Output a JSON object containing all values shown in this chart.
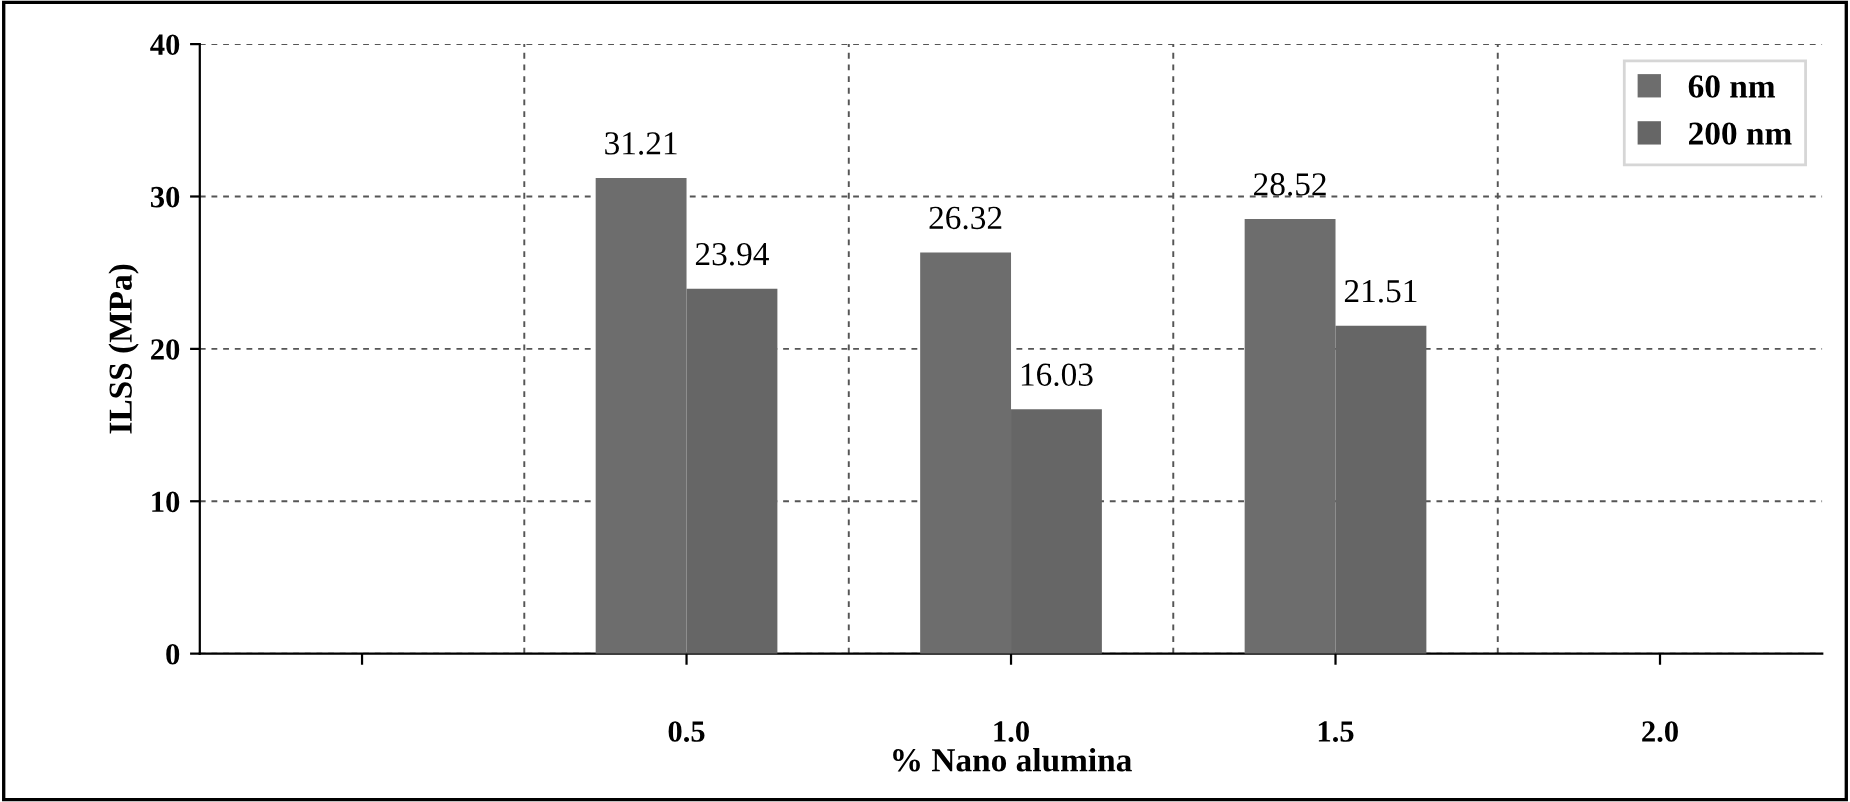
{
  "chart_data": {
    "type": "bar",
    "xlabel": "% Nano alumina",
    "ylabel": "ILSS (MPa)",
    "categories": [
      null,
      "0.5",
      "1.0",
      "1.5",
      "2.0"
    ],
    "series": [
      {
        "name": "60 nm",
        "color": "#6d6d6d",
        "values": [
          null,
          31.21,
          26.32,
          28.52,
          null
        ]
      },
      {
        "name": "200 nm",
        "color": "#666666",
        "values": [
          null,
          23.94,
          16.03,
          21.51,
          null
        ]
      }
    ],
    "ylim": [
      0,
      40
    ],
    "yticks": [
      0,
      10,
      20,
      30,
      40
    ],
    "grid": true,
    "legend": "top right",
    "data_labels": true
  }
}
